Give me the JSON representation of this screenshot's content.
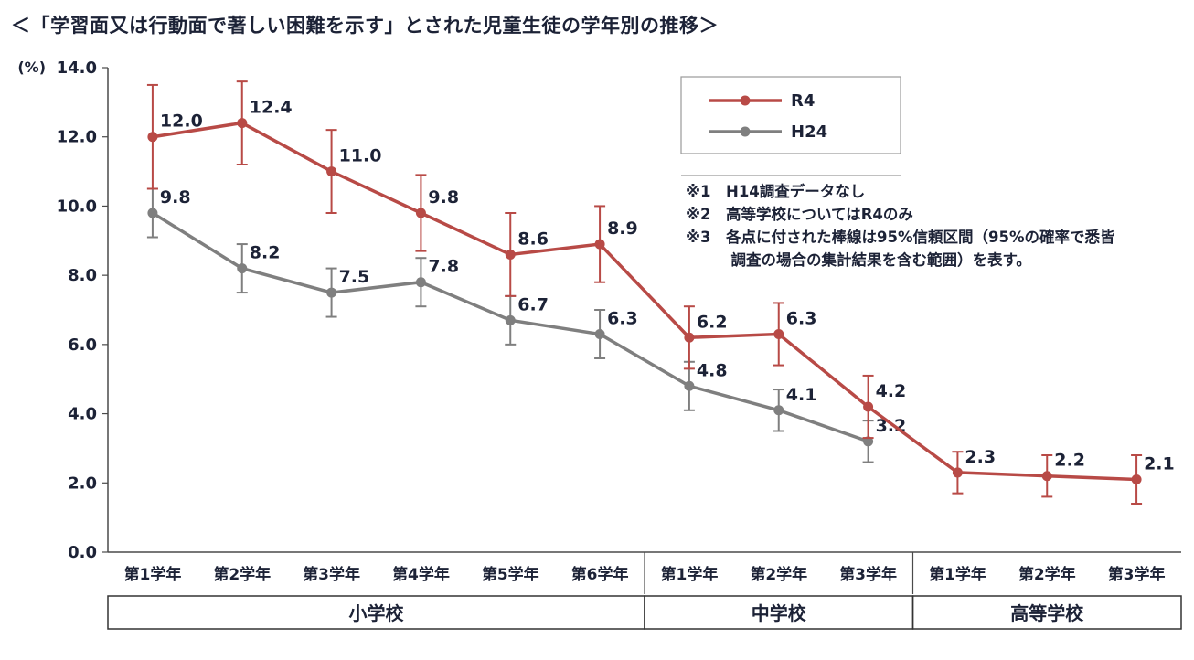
{
  "style": {
    "ink": "#1c2236",
    "axis": "#4a4a4a",
    "box_border": "#333333",
    "legend_border": "#9a9a9a",
    "background": "#ffffff"
  },
  "chart_data": {
    "type": "line",
    "title": "＜「学習面又は行動面で著しい困難を示す」とされた児童生徒の学年別の推移＞",
    "xlabel": "",
    "ylabel": "(%)",
    "ylim": [
      0.0,
      14.0
    ],
    "yticks": [
      0.0,
      2.0,
      4.0,
      6.0,
      8.0,
      10.0,
      12.0,
      14.0
    ],
    "grid": false,
    "categories": [
      "第1学年",
      "第2学年",
      "第3学年",
      "第4学年",
      "第5学年",
      "第6学年",
      "第1学年",
      "第2学年",
      "第3学年",
      "第1学年",
      "第2学年",
      "第3学年"
    ],
    "category_groups": [
      {
        "label": "小学校",
        "span": 6
      },
      {
        "label": "中学校",
        "span": 3
      },
      {
        "label": "高等学校",
        "span": 3
      }
    ],
    "series": [
      {
        "name": "R4",
        "color": "#b84a46",
        "values": [
          12.0,
          12.4,
          11.0,
          9.8,
          8.6,
          8.9,
          6.2,
          6.3,
          4.2,
          2.3,
          2.2,
          2.1
        ],
        "error": [
          1.5,
          1.2,
          1.2,
          1.1,
          1.2,
          1.1,
          0.9,
          0.9,
          0.9,
          0.6,
          0.6,
          0.7
        ]
      },
      {
        "name": "H24",
        "color": "#7f7f7f",
        "values": [
          9.8,
          8.2,
          7.5,
          7.8,
          6.7,
          6.3,
          4.8,
          4.1,
          3.2,
          null,
          null,
          null
        ],
        "error": [
          0.7,
          0.7,
          0.7,
          0.7,
          0.7,
          0.7,
          0.7,
          0.6,
          0.6
        ]
      }
    ],
    "legend": {
      "position": "top-right",
      "entries": [
        "R4",
        "H24"
      ]
    },
    "notes": [
      "※1　H14調査データなし",
      "※2　高等学校についてはR4のみ",
      "※3　各点に付された棒線は95%信頼区間（95%の確率で悉皆",
      "　　　調査の場合の集計結果を含む範囲）を表す。"
    ]
  }
}
